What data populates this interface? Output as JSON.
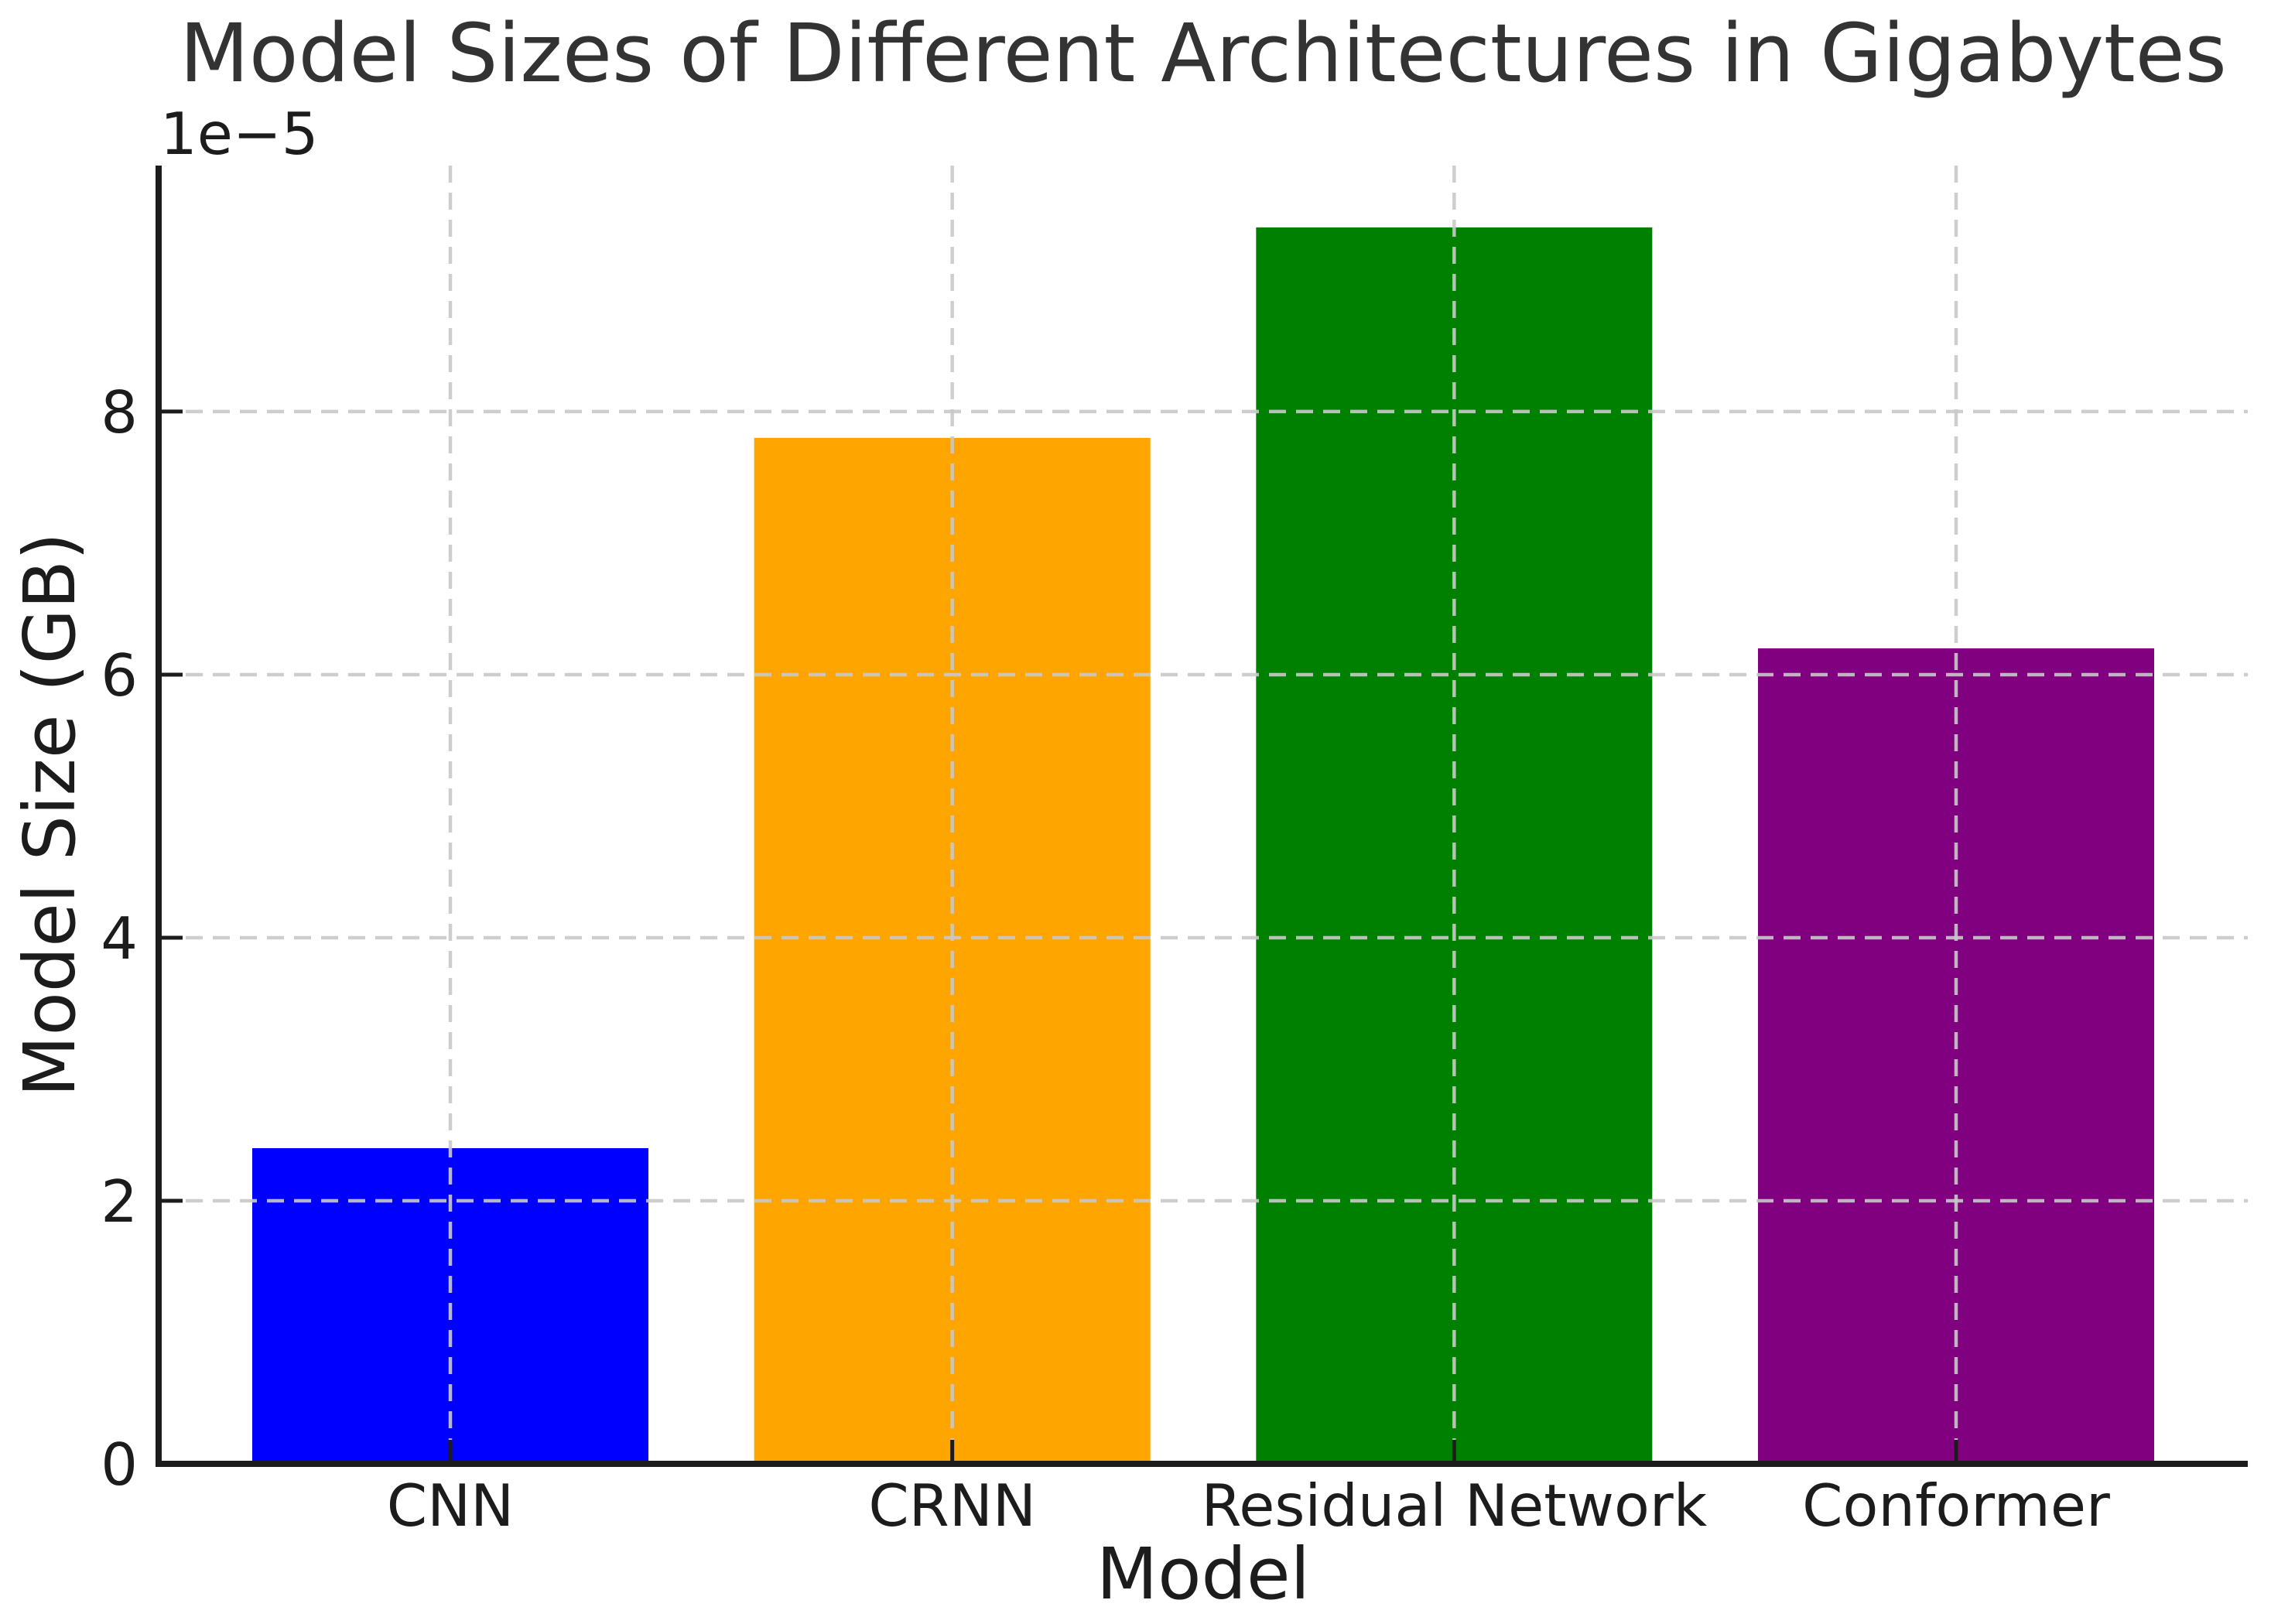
{
  "chart_data": {
    "type": "bar",
    "title": "Model Sizes of Different Architectures in Gigabytes",
    "xlabel": "Model",
    "ylabel": "Model Size (GB)",
    "offset_text": "1e−5",
    "categories": [
      "CNN",
      "CRNN",
      "Residual Network",
      "Conformer"
    ],
    "values": [
      2.4e-05,
      7.8e-05,
      9.4e-05,
      6.2e-05
    ],
    "bar_colors": [
      "#0000ff",
      "#ffa500",
      "#008000",
      "#800080"
    ],
    "y_ticks": [
      0,
      2,
      4,
      6,
      8
    ],
    "y_tick_labels": [
      "0",
      "2",
      "4",
      "6",
      "8"
    ],
    "y_tick_scale": 1e-05,
    "ylim": [
      0,
      9.87e-05
    ],
    "xlim_categories": 4,
    "grid": "both-dashed",
    "legend": "none",
    "bar_width_fraction": 0.8
  },
  "colors": {
    "background": "#ffffff",
    "grid": "#c9c9c9",
    "spine": "#1c1c1c",
    "tick": "#1c1c1c",
    "text": "#1c1c1c",
    "title": "#333333"
  }
}
